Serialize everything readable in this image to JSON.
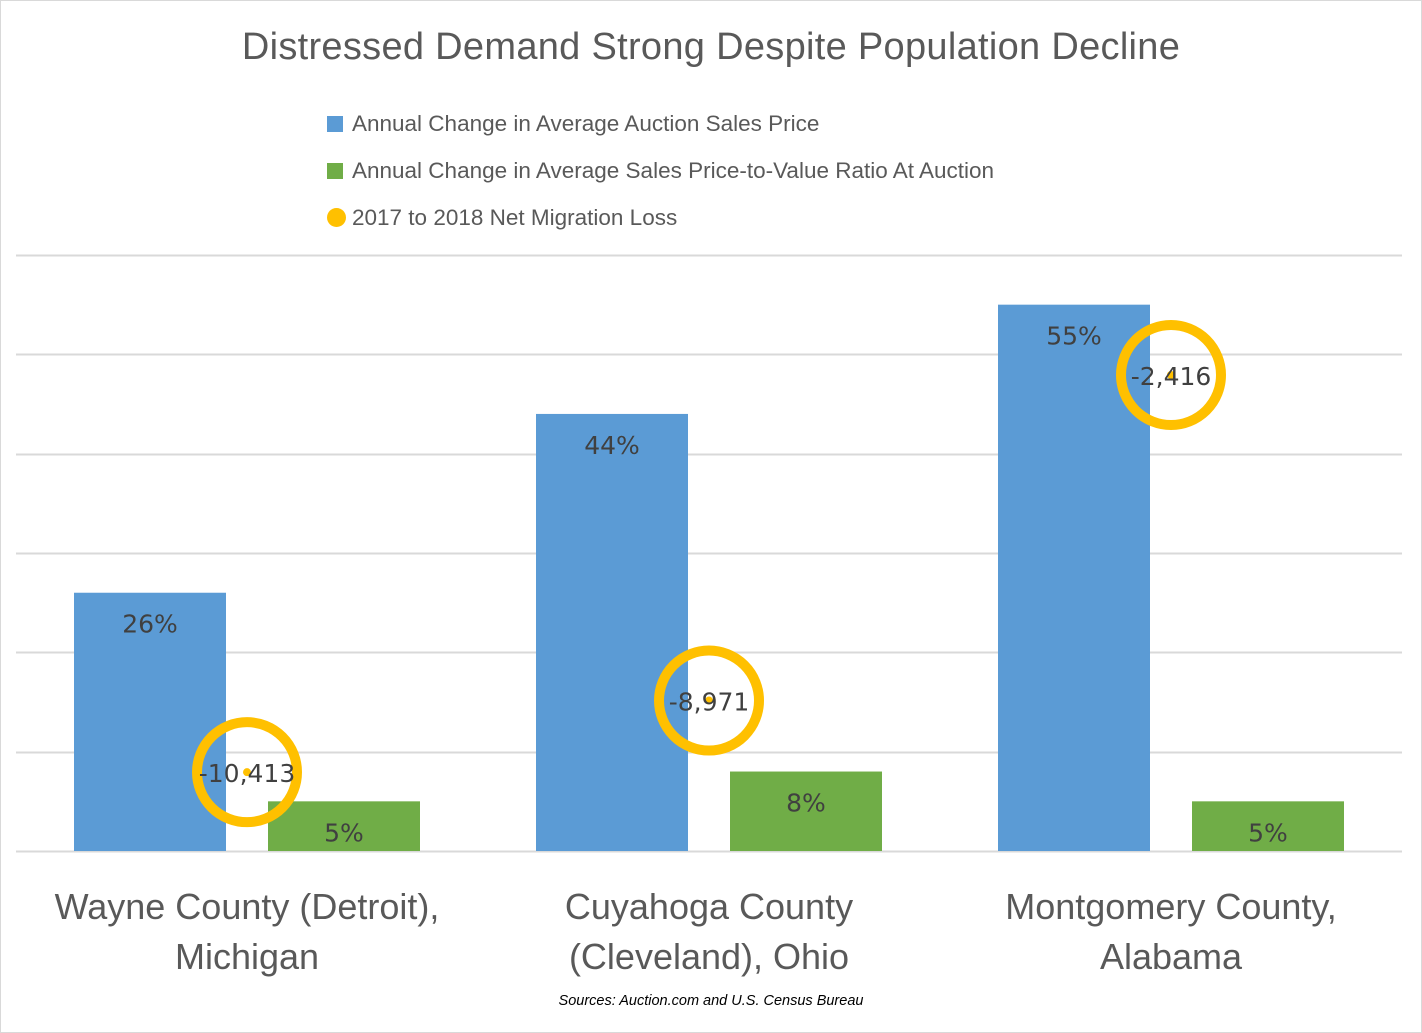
{
  "chart_data": {
    "type": "bar",
    "title": "Distressed Demand Strong Despite Population Decline",
    "categories": [
      "Wayne County (Detroit), Michigan",
      "Cuyahoga County (Cleveland), Ohio",
      "Montgomery County, Alabama"
    ],
    "category_lines": [
      [
        "Wayne County (Detroit),",
        "Michigan"
      ],
      [
        "Cuyahoga County",
        "(Cleveland), Ohio"
      ],
      [
        "Montgomery County,",
        "Alabama"
      ]
    ],
    "series": [
      {
        "name": "Annual Change in Average Auction Sales Price",
        "kind": "bar",
        "axis": "primary",
        "color": "#5b9bd5",
        "values": [
          26,
          44,
          55
        ],
        "labels": [
          "26%",
          "44%",
          "55%"
        ]
      },
      {
        "name": "Annual Change in Average Sales Price-to-Value Ratio At Auction",
        "kind": "bar",
        "axis": "primary",
        "color": "#70ad47",
        "values": [
          5,
          8,
          5
        ],
        "labels": [
          "5%",
          "8%",
          "5%"
        ]
      },
      {
        "name": "2017 to 2018 Net Migration Loss",
        "kind": "scatter",
        "axis": "secondary",
        "color": "#ffc000",
        "values": [
          -10413,
          -8971,
          -2416
        ],
        "labels": [
          "-10,413",
          "-8,971",
          "-2,416"
        ]
      }
    ],
    "xlabel": "",
    "ylabel": "",
    "ylim": [
      0,
      60
    ],
    "y_unit": "%",
    "y2lim": [
      -12000,
      0
    ],
    "axis_tick_labels_visible": false,
    "grid": true,
    "gridline_step": 10,
    "legend_position": "top-center",
    "source_note": "Sources: Auction.com and U.S. Census Bureau"
  }
}
